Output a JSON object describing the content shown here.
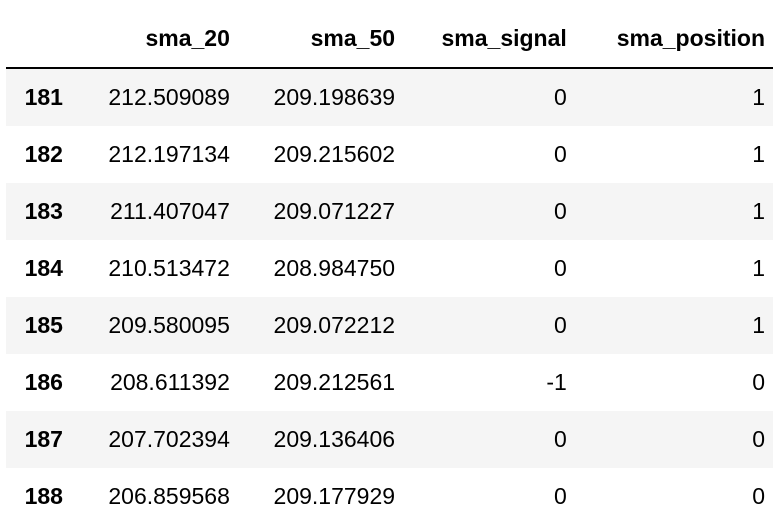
{
  "table": {
    "columns": [
      "",
      "sma_20",
      "sma_50",
      "sma_signal",
      "sma_position"
    ],
    "rows": [
      {
        "index": "181",
        "sma_20": "212.509089",
        "sma_50": "209.198639",
        "sma_signal": "0",
        "sma_position": "1"
      },
      {
        "index": "182",
        "sma_20": "212.197134",
        "sma_50": "209.215602",
        "sma_signal": "0",
        "sma_position": "1"
      },
      {
        "index": "183",
        "sma_20": "211.407047",
        "sma_50": "209.071227",
        "sma_signal": "0",
        "sma_position": "1"
      },
      {
        "index": "184",
        "sma_20": "210.513472",
        "sma_50": "208.984750",
        "sma_signal": "0",
        "sma_position": "1"
      },
      {
        "index": "185",
        "sma_20": "209.580095",
        "sma_50": "209.072212",
        "sma_signal": "0",
        "sma_position": "1"
      },
      {
        "index": "186",
        "sma_20": "208.611392",
        "sma_50": "209.212561",
        "sma_signal": "-1",
        "sma_position": "0"
      },
      {
        "index": "187",
        "sma_20": "207.702394",
        "sma_50": "209.136406",
        "sma_signal": "0",
        "sma_position": "0"
      },
      {
        "index": "188",
        "sma_20": "206.859568",
        "sma_50": "209.177929",
        "sma_signal": "0",
        "sma_position": "0"
      }
    ]
  }
}
